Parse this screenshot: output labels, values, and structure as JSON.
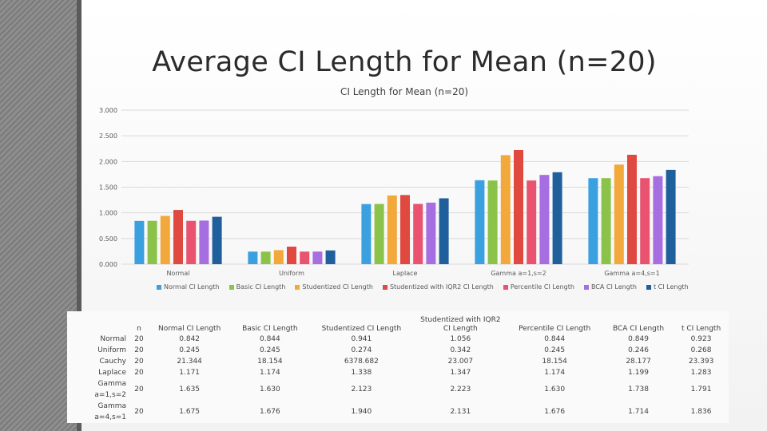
{
  "slide": {
    "title": "Average CI Length for Mean (n=20)"
  },
  "chart_data": {
    "type": "bar",
    "title": "CI Length for Mean (n=20)",
    "categories": [
      "Normal",
      "Uniform",
      "Laplace",
      "Gamma a=1,s=2",
      "Gamma a=4,s=1"
    ],
    "ylim": [
      0,
      3
    ],
    "yticks": [
      "0.000",
      "0.500",
      "1.000",
      "1.500",
      "2.000",
      "2.500",
      "3.000"
    ],
    "grid": true,
    "legend_position": "bottom",
    "series": [
      {
        "name": "Normal CI Length",
        "color": "#3aa0e0",
        "values": [
          0.842,
          0.245,
          1.171,
          1.635,
          1.675
        ]
      },
      {
        "name": "Basic CI Length",
        "color": "#8bc34a",
        "values": [
          0.844,
          0.245,
          1.174,
          1.63,
          1.676
        ]
      },
      {
        "name": "Studentized CI Length",
        "color": "#f2a83b",
        "values": [
          0.941,
          0.274,
          1.338,
          2.123,
          1.94
        ]
      },
      {
        "name": "Studentized with IQR2 CI Length",
        "color": "#e0493f",
        "values": [
          1.056,
          0.342,
          1.347,
          2.223,
          2.131
        ]
      },
      {
        "name": "Percentile CI Length",
        "color": "#e9536f",
        "values": [
          0.844,
          0.245,
          1.174,
          1.63,
          1.676
        ]
      },
      {
        "name": "BCA CI Length",
        "color": "#a66ee0",
        "values": [
          0.849,
          0.246,
          1.199,
          1.738,
          1.714
        ]
      },
      {
        "name": "t CI Length",
        "color": "#1f5f9c",
        "values": [
          0.923,
          0.268,
          1.283,
          1.791,
          1.836
        ]
      }
    ]
  },
  "table": {
    "headers": [
      "",
      "n",
      "Normal CI Length",
      "Basic CI Length",
      "Studentized CI Length",
      "Studentized with IQR2 CI Length",
      "Percentile CI Length",
      "BCA CI Length",
      "t CI Length"
    ],
    "rows": [
      [
        "Normal",
        "20",
        "0.842",
        "0.844",
        "0.941",
        "1.056",
        "0.844",
        "0.849",
        "0.923"
      ],
      [
        "Uniform",
        "20",
        "0.245",
        "0.245",
        "0.274",
        "0.342",
        "0.245",
        "0.246",
        "0.268"
      ],
      [
        "Cauchy",
        "20",
        "21.344",
        "18.154",
        "6378.682",
        "23.007",
        "18.154",
        "28.177",
        "23.393"
      ],
      [
        "Laplace",
        "20",
        "1.171",
        "1.174",
        "1.338",
        "1.347",
        "1.174",
        "1.199",
        "1.283"
      ],
      [
        "Gamma a=1,s=2",
        "20",
        "1.635",
        "1.630",
        "2.123",
        "2.223",
        "1.630",
        "1.738",
        "1.791"
      ],
      [
        "Gamma a=4,s=1",
        "20",
        "1.675",
        "1.676",
        "1.940",
        "2.131",
        "1.676",
        "1.714",
        "1.836"
      ]
    ]
  }
}
